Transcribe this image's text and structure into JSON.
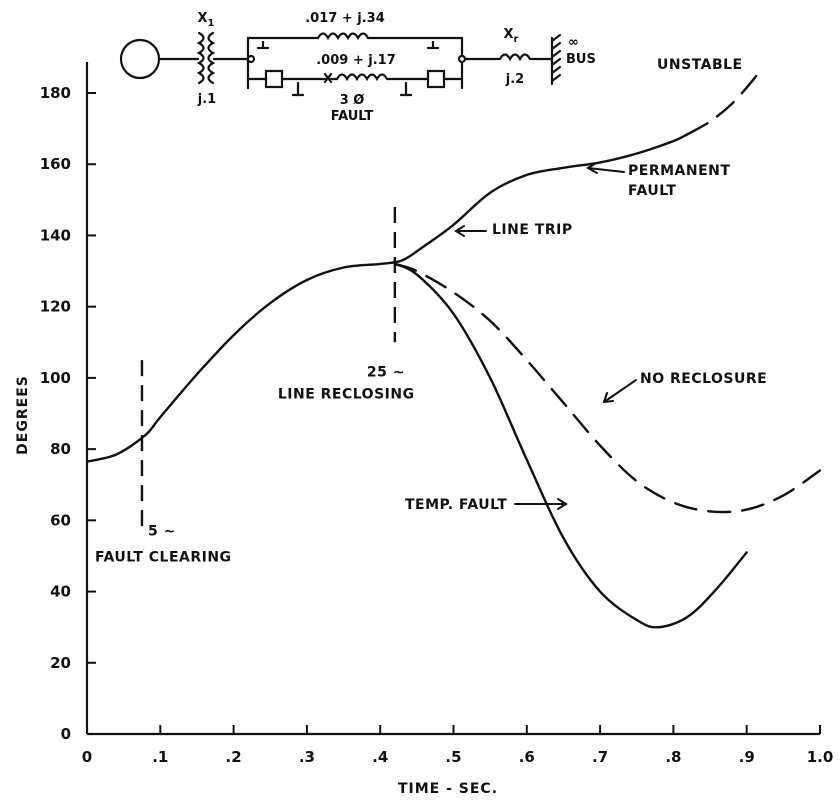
{
  "chart_data": {
    "type": "line",
    "title": "",
    "xlabel": "TIME - SEC.",
    "ylabel": "DEGREES",
    "xlim": [
      0,
      1.0
    ],
    "ylim": [
      0,
      190
    ],
    "x_ticks": [
      0,
      0.1,
      0.2,
      0.3,
      0.4,
      0.5,
      0.6,
      0.7,
      0.8,
      0.9,
      1.0
    ],
    "x_tick_labels": [
      "0",
      ".1",
      ".2",
      ".3",
      ".4",
      ".5",
      ".6",
      ".7",
      ".8",
      ".9",
      "1.0"
    ],
    "y_ticks": [
      0,
      20,
      40,
      60,
      80,
      100,
      120,
      140,
      160,
      180
    ],
    "y_tick_labels": [
      "0",
      "20",
      "40",
      "60",
      "80",
      "100",
      "120",
      "140",
      "160",
      "180"
    ],
    "grid": false,
    "series": [
      {
        "name": "PERMANENT FAULT",
        "style": "solid",
        "points": [
          [
            0,
            76.5
          ],
          [
            0.04,
            78.5
          ],
          [
            0.08,
            84
          ],
          [
            0.1,
            89
          ],
          [
            0.15,
            101
          ],
          [
            0.2,
            112
          ],
          [
            0.25,
            121
          ],
          [
            0.3,
            127.5
          ],
          [
            0.35,
            131
          ],
          [
            0.4,
            132
          ],
          [
            0.43,
            133
          ],
          [
            0.46,
            137
          ],
          [
            0.5,
            143
          ],
          [
            0.55,
            152
          ],
          [
            0.6,
            157
          ],
          [
            0.65,
            159
          ],
          [
            0.7,
            160.5
          ],
          [
            0.75,
            163
          ],
          [
            0.8,
            166.5
          ],
          [
            0.82,
            168.5
          ]
        ]
      },
      {
        "name": "UNSTABLE",
        "style": "dashed",
        "points": [
          [
            0.82,
            168.5
          ],
          [
            0.85,
            172
          ],
          [
            0.88,
            177
          ],
          [
            0.91,
            184
          ],
          [
            0.92,
            187
          ]
        ]
      },
      {
        "name": "NO RECLOSURE",
        "style": "dashed",
        "points": [
          [
            0.42,
            132
          ],
          [
            0.45,
            130
          ],
          [
            0.5,
            124
          ],
          [
            0.55,
            116
          ],
          [
            0.6,
            105
          ],
          [
            0.65,
            93
          ],
          [
            0.7,
            81
          ],
          [
            0.75,
            71
          ],
          [
            0.8,
            65
          ],
          [
            0.85,
            62.5
          ],
          [
            0.9,
            63
          ],
          [
            0.95,
            67
          ],
          [
            1.0,
            74
          ]
        ]
      },
      {
        "name": "TEMP. FAULT",
        "style": "solid",
        "points": [
          [
            0.42,
            132
          ],
          [
            0.45,
            129
          ],
          [
            0.5,
            118
          ],
          [
            0.55,
            100
          ],
          [
            0.6,
            77
          ],
          [
            0.65,
            55
          ],
          [
            0.7,
            40
          ],
          [
            0.75,
            32
          ],
          [
            0.78,
            30
          ],
          [
            0.82,
            33
          ],
          [
            0.86,
            41
          ],
          [
            0.9,
            51
          ]
        ]
      }
    ],
    "markers": [
      {
        "label": "5 ~",
        "sub": "FAULT CLEARING",
        "x": 0.075,
        "y_range": [
          56,
          105
        ]
      },
      {
        "label": "25 ~",
        "sub": "LINE RECLOSING",
        "x": 0.42,
        "y_range": [
          110,
          148
        ]
      }
    ],
    "annotations": {
      "unstable": "UNSTABLE",
      "permanent_1": "PERMANENT",
      "permanent_2": "FAULT",
      "line_trip": "LINE TRIP",
      "no_reclosure": "NO RECLOSURE",
      "temp_fault": "TEMP. FAULT"
    },
    "circuit": {
      "x1_label": "X",
      "x1_sub": "1",
      "x1_value": "j.1",
      "line1_impedance": ".017 + j.34",
      "line2_impedance": ".009 + j.17",
      "fault_label_1": "3 Ø",
      "fault_label_2": "FAULT",
      "xr_label": "X",
      "xr_sub": "r",
      "xr_value": "j.2",
      "bus_label_1": "∞",
      "bus_label_2": "BUS"
    }
  }
}
